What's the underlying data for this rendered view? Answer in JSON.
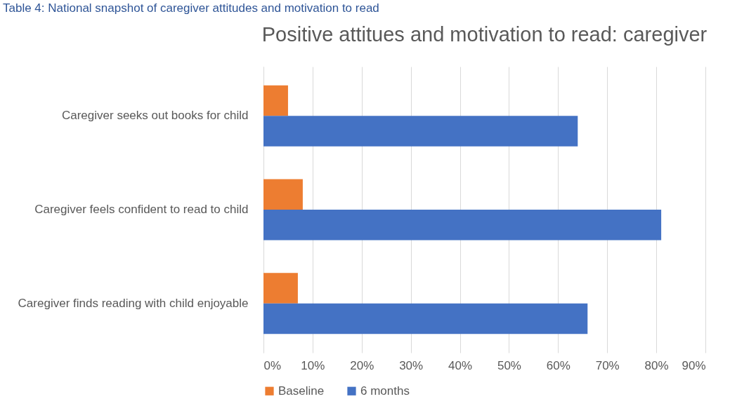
{
  "chart_data": {
    "type": "bar",
    "orientation": "horizontal",
    "title": "Positive attitues and motivation to read: caregiver",
    "annotations": [
      "Table 4: National snapshot of caregiver attitudes and motivation to read"
    ],
    "categories": [
      "Caregiver seeks out books for child",
      "Caregiver feels confident to read to child",
      "Caregiver finds reading with child enjoyable"
    ],
    "series": [
      {
        "name": "Baseline",
        "color": "#ed7d31",
        "values": [
          5,
          8,
          7
        ]
      },
      {
        "name": "6 months",
        "color": "#4472c4",
        "values": [
          64,
          81,
          66
        ]
      }
    ],
    "xlim": [
      0,
      90
    ],
    "xticks": [
      {
        "value": 0,
        "label": "0%"
      },
      {
        "value": 10,
        "label": "10%"
      },
      {
        "value": 20,
        "label": "20%"
      },
      {
        "value": 30,
        "label": "30%"
      },
      {
        "value": 40,
        "label": "40%"
      },
      {
        "value": 50,
        "label": "50%"
      },
      {
        "value": 60,
        "label": "60%"
      },
      {
        "value": 70,
        "label": "70%"
      },
      {
        "value": 80,
        "label": "80%"
      },
      {
        "value": 90,
        "label": "90%"
      }
    ],
    "grid": "x",
    "legend": "bottom"
  }
}
